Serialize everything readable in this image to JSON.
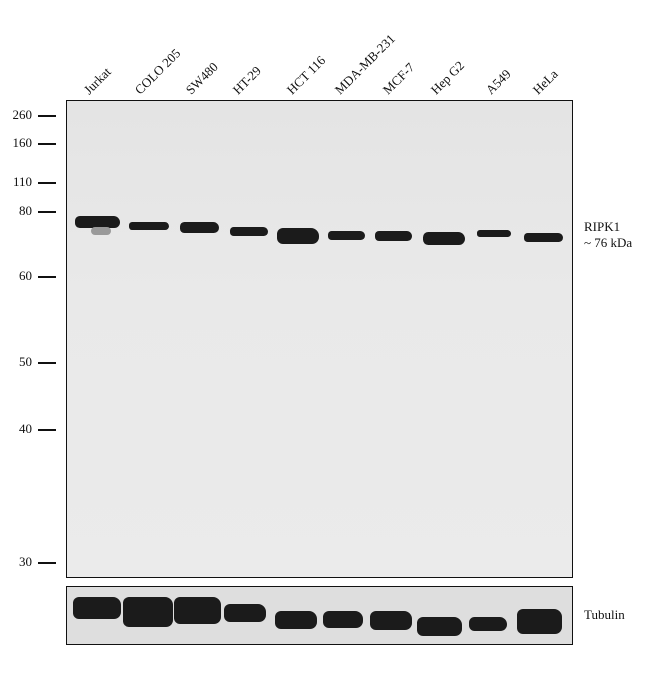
{
  "lanes": [
    "Jurkat",
    "COLO 205",
    "SW480",
    "HT-29",
    "HCT 116",
    "MDA-MB-231",
    "MCF-7",
    "Hep G2",
    "A549",
    "HeLa"
  ],
  "markers": [
    "260",
    "160",
    "110",
    "80",
    "60",
    "50",
    "40",
    "30"
  ],
  "target": {
    "name": "RIPK1",
    "size": "~ 76 kDa"
  },
  "loading_control": "Tubulin",
  "colors": {
    "band": "#1b1b1b",
    "membrane": "#e8e8e8"
  }
}
